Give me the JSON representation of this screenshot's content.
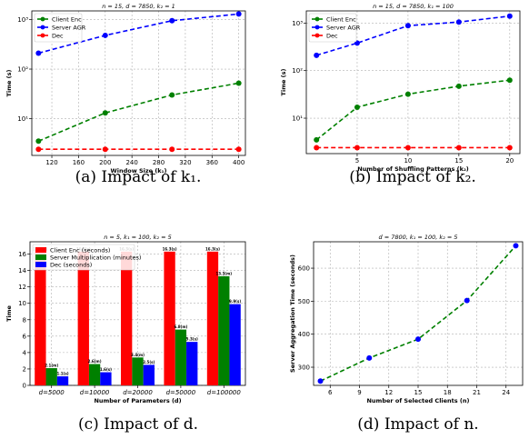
{
  "chart_data": [
    {
      "type": "line",
      "title": "n = 15, d = 7850, k₂ = 1",
      "xlabel": "Window Size (k₁)",
      "ylabel": "Time (s)",
      "yscale": "log",
      "ylim": [
        1.8,
        1500
      ],
      "xlim": [
        90,
        410
      ],
      "xticks": [
        120,
        160,
        200,
        240,
        280,
        320,
        360,
        400
      ],
      "yticks": [
        {
          "v": 10,
          "label": "10¹"
        },
        {
          "v": 100,
          "label": "10²"
        },
        {
          "v": 1000,
          "label": "10³"
        }
      ],
      "x": [
        100,
        200,
        300,
        400
      ],
      "series": [
        {
          "name": "Client Enc",
          "color": "#008000",
          "values": [
            3.5,
            13,
            30,
            52
          ]
        },
        {
          "name": "Server AGR",
          "color": "#0000ff",
          "values": [
            210,
            480,
            950,
            1300
          ]
        },
        {
          "name": "Dec",
          "color": "#ff0000",
          "values": [
            2.4,
            2.4,
            2.4,
            2.4
          ]
        }
      ],
      "grid": true,
      "legend": "top-left",
      "caption": "(a) Impact of k₁."
    },
    {
      "type": "line",
      "title": "n = 15, d = 7850, k₁ = 100",
      "xlabel": "Number of Shuffling Patterns (k₂)",
      "ylabel": "Time (s)",
      "yscale": "log",
      "ylim": [
        1.8,
        1800
      ],
      "xlim": [
        0,
        21
      ],
      "xticks": [
        5,
        10,
        15,
        20
      ],
      "yticks": [
        {
          "v": 10,
          "label": "10¹"
        },
        {
          "v": 100,
          "label": "10²"
        },
        {
          "v": 1000,
          "label": "10³"
        }
      ],
      "x": [
        1,
        5,
        10,
        15,
        20
      ],
      "series": [
        {
          "name": "Client Enc",
          "color": "#008000",
          "values": [
            3.5,
            17,
            32,
            47,
            63
          ]
        },
        {
          "name": "Server AGR",
          "color": "#0000ff",
          "values": [
            210,
            380,
            880,
            1050,
            1400
          ]
        },
        {
          "name": "Dec",
          "color": "#ff0000",
          "values": [
            2.4,
            2.4,
            2.4,
            2.4,
            2.4
          ]
        }
      ],
      "grid": true,
      "legend": "top-left",
      "caption": "(b) Impact of k₂."
    },
    {
      "type": "bar",
      "title": "n = 5, k₁ = 100, k₂ = 5",
      "xlabel": "Number of Parameters (d)",
      "ylabel": "Time",
      "ylim": [
        0,
        17.5
      ],
      "yticks": [
        0,
        2,
        4,
        6,
        8,
        10,
        12,
        14,
        16
      ],
      "categories": [
        "d=5000",
        "d=10000",
        "d=20000",
        "d=50000",
        "d=100000"
      ],
      "series": [
        {
          "name": "Client Enc (seconds)",
          "color": "#ff0000",
          "values": [
            16.3,
            16.3,
            16.3,
            16.3,
            16.3
          ],
          "labels": [
            "16.3(s)",
            "16.3(s)",
            "16.3(s)",
            "16.3(s)",
            "16.3(s)"
          ]
        },
        {
          "name": "Server Multiplication (minutes)",
          "color": "#008000",
          "values": [
            2.1,
            2.6,
            3.4,
            6.8,
            13.3
          ],
          "labels": [
            "2.1(m)",
            "2.6(m)",
            "3.4(m)",
            "6.8(m)",
            "13.3(m)"
          ]
        },
        {
          "name": "Dec (seconds)",
          "color": "#0000ff",
          "values": [
            1.1,
            1.6,
            2.5,
            5.3,
            9.9
          ],
          "labels": [
            "1.1(s)",
            "1.6(s)",
            "2.5(s)",
            "5.3(s)",
            "9.9(s)"
          ]
        }
      ],
      "grid": true,
      "legend": "top-left",
      "caption": "(c) Impact of d."
    },
    {
      "type": "line",
      "title": "d = 7800, k₁ = 100, k₂ = 5",
      "xlabel": "Number of Selected Clients (n)",
      "ylabel": "Server Aggregation Time (seconds)",
      "ylim": [
        245,
        680
      ],
      "xlim": [
        4.3,
        25.7
      ],
      "xticks": [
        6,
        9,
        12,
        15,
        18,
        21,
        24
      ],
      "yticks": [
        {
          "v": 300,
          "label": "300"
        },
        {
          "v": 400,
          "label": "400"
        },
        {
          "v": 500,
          "label": "500"
        },
        {
          "v": 600,
          "label": "600"
        }
      ],
      "x": [
        5,
        10,
        15,
        20,
        25
      ],
      "series": [
        {
          "color": "#008000",
          "marker": "#0000ff",
          "values": [
            258,
            328,
            385,
            502,
            668
          ]
        }
      ],
      "grid": true,
      "caption": "(d) Impact of n."
    }
  ]
}
